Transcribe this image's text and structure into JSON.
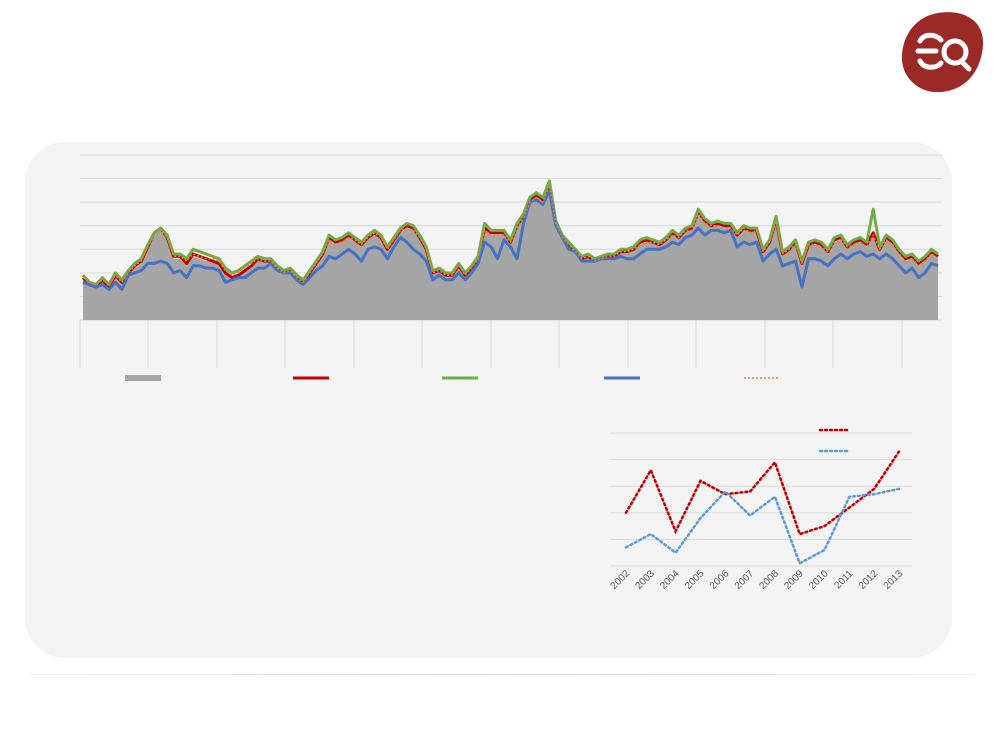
{
  "logo": {
    "name": "eq-logo",
    "color": "#9b2a27"
  },
  "chart_data": [
    {
      "type": "area",
      "title": "",
      "grid": true,
      "legend_position": "bottom",
      "ylim": [
        0,
        7
      ],
      "x_index": {
        "start": 0,
        "end": 133
      },
      "series": [
        {
          "type": "area",
          "color": "#a5a5a5",
          "values": [
            1.8,
            1.5,
            1.4,
            1.7,
            1.4,
            1.8,
            1.6,
            2.0,
            2.2,
            2.4,
            3.0,
            3.6,
            3.8,
            3.5,
            2.6,
            2.6,
            2.4,
            2.7,
            2.6,
            2.5,
            2.5,
            2.4,
            2.0,
            1.8,
            1.9,
            2.1,
            2.3,
            2.6,
            2.5,
            2.5,
            2.2,
            2.0,
            2.1,
            1.8,
            1.6,
            2.0,
            2.4,
            2.8,
            3.4,
            3.2,
            3.3,
            3.5,
            3.4,
            3.2,
            3.5,
            3.7,
            3.5,
            3.0,
            3.4,
            3.7,
            3.9,
            3.8,
            3.5,
            3.0,
            2.0,
            2.1,
            1.9,
            1.9,
            2.3,
            1.9,
            2.2,
            2.6,
            3.8,
            3.6,
            3.6,
            3.6,
            3.3,
            3.9,
            4.3,
            5.0,
            5.2,
            5.0,
            5.7,
            4.1,
            3.5,
            3.2,
            2.9,
            2.6,
            2.7,
            2.5,
            2.6,
            2.7,
            2.7,
            2.9,
            2.9,
            3.0,
            3.2,
            3.3,
            3.3,
            3.2,
            3.4,
            3.6,
            3.5,
            3.8,
            3.8,
            4.5,
            4.1,
            4.0,
            4.0,
            3.9,
            3.9,
            3.6,
            3.9,
            3.7,
            3.8,
            2.9,
            3.3,
            4.2,
            2.8,
            3.0,
            3.2,
            2.4,
            3.2,
            3.2,
            3.1,
            2.9,
            3.3,
            3.4,
            3.1,
            3.2,
            3.3,
            3.1,
            3.6,
            3.0,
            3.4,
            3.2,
            2.8,
            2.5,
            2.6,
            2.3,
            2.5,
            2.8,
            2.6
          ]
        },
        {
          "type": "line",
          "color": "#c00000",
          "values": [
            1.8,
            1.5,
            1.4,
            1.7,
            1.4,
            1.9,
            1.6,
            2.0,
            2.3,
            2.5,
            3.1,
            3.7,
            3.9,
            3.5,
            2.7,
            2.7,
            2.4,
            2.8,
            2.7,
            2.6,
            2.5,
            2.4,
            2.0,
            1.8,
            1.9,
            2.1,
            2.3,
            2.6,
            2.5,
            2.5,
            2.2,
            2.0,
            2.1,
            1.8,
            1.6,
            2.0,
            2.4,
            2.8,
            3.5,
            3.3,
            3.4,
            3.6,
            3.4,
            3.2,
            3.5,
            3.7,
            3.5,
            3.0,
            3.4,
            3.8,
            4.0,
            3.9,
            3.5,
            3.0,
            2.0,
            2.1,
            1.9,
            1.9,
            2.3,
            1.9,
            2.2,
            2.6,
            3.9,
            3.7,
            3.7,
            3.7,
            3.3,
            4.0,
            4.4,
            5.1,
            5.3,
            5.1,
            5.8,
            4.1,
            3.5,
            3.2,
            2.9,
            2.6,
            2.7,
            2.5,
            2.6,
            2.7,
            2.7,
            2.9,
            2.9,
            3.0,
            3.3,
            3.4,
            3.3,
            3.2,
            3.4,
            3.7,
            3.5,
            3.8,
            3.9,
            4.6,
            4.2,
            4.0,
            4.1,
            4.0,
            4.0,
            3.6,
            3.9,
            3.8,
            3.8,
            2.9,
            3.3,
            4.3,
            2.8,
            3.0,
            3.3,
            2.4,
            3.2,
            3.3,
            3.2,
            2.9,
            3.4,
            3.5,
            3.1,
            3.3,
            3.4,
            3.2,
            3.7,
            3.0,
            3.5,
            3.3,
            2.9,
            2.6,
            2.7,
            2.4,
            2.6,
            2.9,
            2.7
          ]
        },
        {
          "type": "line",
          "color": "#70ad47",
          "values": [
            1.9,
            1.6,
            1.5,
            1.8,
            1.5,
            2.0,
            1.7,
            2.1,
            2.4,
            2.6,
            3.2,
            3.7,
            3.9,
            3.6,
            2.8,
            2.8,
            2.6,
            3.0,
            2.9,
            2.8,
            2.7,
            2.6,
            2.2,
            2.0,
            2.1,
            2.3,
            2.5,
            2.7,
            2.6,
            2.6,
            2.3,
            2.1,
            2.2,
            1.9,
            1.7,
            2.1,
            2.5,
            2.9,
            3.6,
            3.4,
            3.5,
            3.7,
            3.5,
            3.3,
            3.6,
            3.8,
            3.6,
            3.1,
            3.5,
            3.9,
            4.1,
            4.0,
            3.6,
            3.1,
            2.1,
            2.2,
            2.0,
            2.0,
            2.4,
            2.0,
            2.3,
            2.7,
            4.1,
            3.8,
            3.8,
            3.8,
            3.4,
            4.1,
            4.5,
            5.2,
            5.4,
            5.2,
            5.9,
            4.2,
            3.6,
            3.3,
            3.0,
            2.7,
            2.8,
            2.6,
            2.7,
            2.8,
            2.8,
            3.0,
            3.0,
            3.1,
            3.4,
            3.5,
            3.4,
            3.3,
            3.5,
            3.8,
            3.6,
            3.9,
            4.0,
            4.7,
            4.3,
            4.1,
            4.2,
            4.1,
            4.1,
            3.7,
            4.0,
            3.9,
            3.9,
            3.0,
            3.4,
            4.4,
            2.9,
            3.1,
            3.4,
            2.5,
            3.3,
            3.4,
            3.3,
            3.0,
            3.5,
            3.6,
            3.2,
            3.4,
            3.5,
            3.3,
            4.7,
            3.1,
            3.6,
            3.4,
            3.0,
            2.7,
            2.8,
            2.5,
            2.7,
            3.0,
            2.8
          ]
        },
        {
          "type": "line",
          "color": "#4472c4",
          "values": [
            1.6,
            1.5,
            1.4,
            1.5,
            1.3,
            1.6,
            1.3,
            1.9,
            2.0,
            2.1,
            2.4,
            2.4,
            2.5,
            2.4,
            2.0,
            2.1,
            1.8,
            2.3,
            2.3,
            2.2,
            2.2,
            2.1,
            1.6,
            1.7,
            1.8,
            1.8,
            2.0,
            2.2,
            2.2,
            2.4,
            2.1,
            2.0,
            2.0,
            1.7,
            1.5,
            1.8,
            2.1,
            2.3,
            2.7,
            2.6,
            2.8,
            3.0,
            2.8,
            2.5,
            3.0,
            3.1,
            3.0,
            2.6,
            3.1,
            3.5,
            3.3,
            3.0,
            2.8,
            2.5,
            1.7,
            1.9,
            1.7,
            1.7,
            2.0,
            1.7,
            2.0,
            2.4,
            3.3,
            3.1,
            2.6,
            3.4,
            3.1,
            2.6,
            4.1,
            5.0,
            5.1,
            4.9,
            5.5,
            4.0,
            3.5,
            3.0,
            2.9,
            2.5,
            2.5,
            2.5,
            2.6,
            2.6,
            2.6,
            2.7,
            2.6,
            2.6,
            2.8,
            3.0,
            3.0,
            3.0,
            3.1,
            3.3,
            3.2,
            3.5,
            3.6,
            3.9,
            3.6,
            3.8,
            3.8,
            3.7,
            3.8,
            3.1,
            3.3,
            3.2,
            3.3,
            2.5,
            2.8,
            3.0,
            2.3,
            2.4,
            2.5,
            1.4,
            2.6,
            2.6,
            2.5,
            2.3,
            2.6,
            2.8,
            2.6,
            2.8,
            2.9,
            2.7,
            2.8,
            2.6,
            2.8,
            2.6,
            2.3,
            2.0,
            2.2,
            1.8,
            2.0,
            2.4,
            2.3
          ]
        },
        {
          "type": "line",
          "dashed": true,
          "color": "#ed7d31",
          "values": [
            1.8,
            1.6,
            1.5,
            1.7,
            1.5,
            1.9,
            1.6,
            2.0,
            2.3,
            2.5,
            3.1,
            3.6,
            3.8,
            3.5,
            2.7,
            2.7,
            2.5,
            2.8,
            2.7,
            2.6,
            2.6,
            2.5,
            2.1,
            1.9,
            2.0,
            2.2,
            2.4,
            2.6,
            2.5,
            2.5,
            2.2,
            2.0,
            2.1,
            1.8,
            1.6,
            2.0,
            2.4,
            2.8,
            3.4,
            3.2,
            3.3,
            3.5,
            3.4,
            3.2,
            3.5,
            3.7,
            3.5,
            3.0,
            3.4,
            3.8,
            3.9,
            3.8,
            3.5,
            3.0,
            2.0,
            2.1,
            1.9,
            1.9,
            2.3,
            1.9,
            2.2,
            2.6,
            3.8,
            3.6,
            3.6,
            3.6,
            3.3,
            3.9,
            4.3,
            5.0,
            5.2,
            5.0,
            5.7,
            4.1,
            3.5,
            3.2,
            2.9,
            2.6,
            2.7,
            2.5,
            2.6,
            2.7,
            2.7,
            2.9,
            2.9,
            3.0,
            3.2,
            3.3,
            3.3,
            3.2,
            3.4,
            3.6,
            3.5,
            3.8,
            3.8,
            4.5,
            4.1,
            4.0,
            4.0,
            3.9,
            3.9,
            3.6,
            3.9,
            3.7,
            3.8,
            2.9,
            3.3,
            4.2,
            2.8,
            3.0,
            3.2,
            2.4,
            3.2,
            3.2,
            3.1,
            2.9,
            3.3,
            3.4,
            3.1,
            3.2,
            3.3,
            3.1,
            3.6,
            3.0,
            3.4,
            3.2,
            2.8,
            2.5,
            2.6,
            2.3,
            2.5,
            2.8,
            2.6
          ]
        }
      ],
      "legend": [
        {
          "label": "",
          "color": "#a5a5a5",
          "style": "area"
        },
        {
          "label": "",
          "color": "#c00000",
          "style": "solid"
        },
        {
          "label": "",
          "color": "#70ad47",
          "style": "solid"
        },
        {
          "label": "",
          "color": "#4472c4",
          "style": "solid"
        },
        {
          "label": "",
          "color": "#ed7d31",
          "style": "dotted"
        }
      ]
    },
    {
      "type": "line",
      "title": "",
      "grid": true,
      "legend_position": "top-right",
      "categories": [
        "2002",
        "2003",
        "2004",
        "2005",
        "2006",
        "2007",
        "2008",
        "2009",
        "2010",
        "2011",
        "2012",
        "2013"
      ],
      "ylim": [
        0,
        5
      ],
      "series": [
        {
          "color": "#c00000",
          "dotted": true,
          "values": [
            2.0,
            3.6,
            1.3,
            3.2,
            2.7,
            2.8,
            3.9,
            1.2,
            1.5,
            2.2,
            2.9,
            4.3
          ]
        },
        {
          "color": "#5b9bd5",
          "dotted": true,
          "values": [
            0.7,
            1.2,
            0.5,
            1.8,
            2.8,
            1.9,
            2.6,
            0.1,
            0.6,
            2.6,
            2.7,
            2.9
          ]
        }
      ]
    }
  ]
}
